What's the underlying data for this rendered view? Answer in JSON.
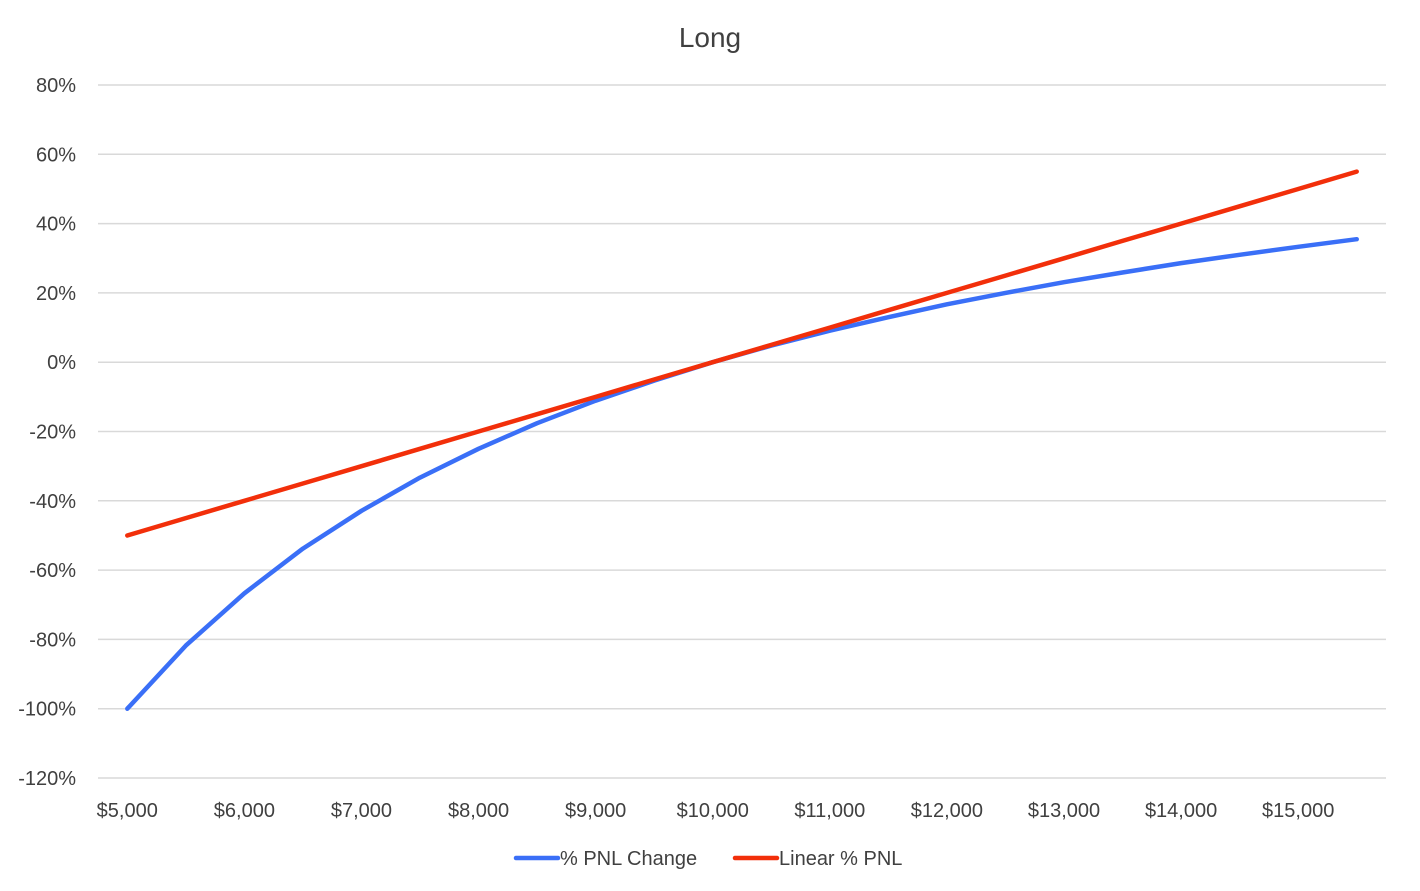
{
  "chart_data": {
    "type": "line",
    "title": "Long",
    "xlabel": "",
    "ylabel": "",
    "x": [
      5000,
      5500,
      6000,
      6500,
      7000,
      7500,
      8000,
      8500,
      9000,
      9500,
      10000,
      10500,
      11000,
      11500,
      12000,
      12500,
      13000,
      13500,
      14000,
      14500,
      15000,
      15500
    ],
    "x_ticks": [
      5000,
      6000,
      7000,
      8000,
      9000,
      10000,
      11000,
      12000,
      13000,
      14000,
      15000
    ],
    "x_tick_labels": [
      "$5,000",
      "$6,000",
      "$7,000",
      "$8,000",
      "$9,000",
      "$10,000",
      "$11,000",
      "$12,000",
      "$13,000",
      "$14,000",
      "$15,000"
    ],
    "xlim": [
      4750,
      15750
    ],
    "ylim": [
      -1.2,
      0.8
    ],
    "y_ticks": [
      -1.2,
      -1.0,
      -0.8,
      -0.6,
      -0.4,
      -0.2,
      0,
      0.2,
      0.4,
      0.6,
      0.8
    ],
    "y_tick_labels": [
      "-120%",
      "-100%",
      "-80%",
      "-60%",
      "-40%",
      "-20%",
      "0%",
      "20%",
      "40%",
      "60%",
      "80%"
    ],
    "grid": true,
    "legend": "bottom",
    "series": [
      {
        "name": "% PNL Change",
        "color": "#3a6ff7",
        "values": [
          -1.0,
          -0.818,
          -0.667,
          -0.538,
          -0.429,
          -0.333,
          -0.25,
          -0.176,
          -0.111,
          -0.053,
          0.0,
          0.048,
          0.091,
          0.13,
          0.167,
          0.2,
          0.231,
          0.259,
          0.286,
          0.31,
          0.333,
          0.355
        ]
      },
      {
        "name": "Linear % PNL",
        "color": "#f22f0a",
        "values": [
          -0.5,
          -0.45,
          -0.4,
          -0.35,
          -0.3,
          -0.25,
          -0.2,
          -0.15,
          -0.1,
          -0.05,
          0.0,
          0.05,
          0.1,
          0.15,
          0.2,
          0.25,
          0.3,
          0.35,
          0.4,
          0.45,
          0.5,
          0.55
        ]
      }
    ]
  }
}
